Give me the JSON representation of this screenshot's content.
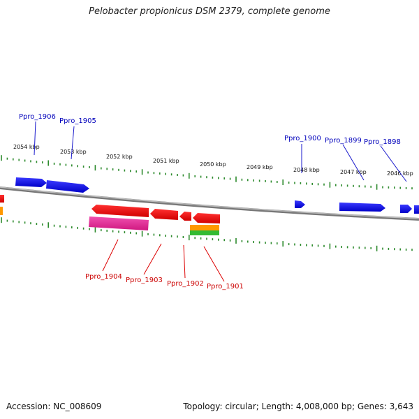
{
  "title": "Pelobacter propionicus DSM 2379, complete genome",
  "footer": {
    "accession": "Accession: NC_008609",
    "summary": "Topology: circular; Length: 4,008,000 bp; Genes: 3,643"
  },
  "colors": {
    "backbone": "#888888",
    "ticks": "#2e8b2e",
    "forward_genes": "#0000ee",
    "reverse_genes": "#ee0000",
    "rna_features": "#e0309a",
    "orange_features": "#ff9900",
    "green_features": "#33bb33"
  },
  "scale": {
    "labels": [
      "2054 kbp",
      "2053 kbp",
      "2052 kbp",
      "2051 kbp",
      "2050 kbp",
      "2049 kbp",
      "2048 kbp",
      "2047 kbp",
      "2046 kbp"
    ]
  },
  "gene_labels": {
    "forward": [
      "Ppro_1906",
      "Ppro_1905",
      "Ppro_1900",
      "Ppro_1899",
      "Ppro_1898"
    ],
    "reverse": [
      "Ppro_1904",
      "Ppro_1903",
      "Ppro_1902",
      "Ppro_1901"
    ]
  }
}
